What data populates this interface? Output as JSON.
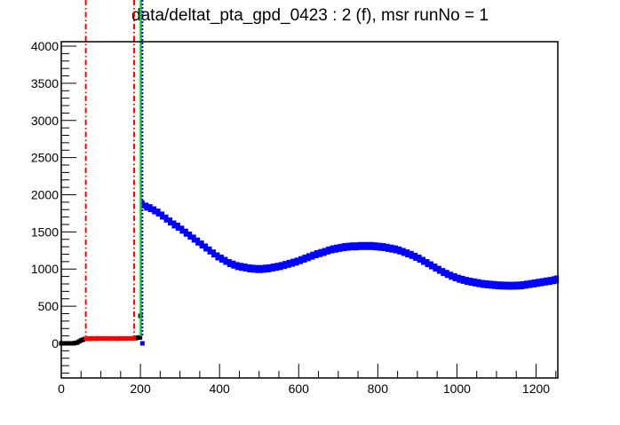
{
  "chart_data": {
    "type": "scatter",
    "title": "data/deltat_pta_gpd_0423 : 2 (f), msr runNo = 1",
    "xlabel": "",
    "ylabel": "",
    "xlim": [
      0,
      1255
    ],
    "ylim": [
      -466,
      4060
    ],
    "grid": false,
    "x_ticks": [
      0,
      200,
      400,
      600,
      800,
      1000,
      1200
    ],
    "y_ticks": [
      0,
      500,
      1000,
      1500,
      2000,
      2500,
      3000,
      3500,
      4000
    ],
    "x_tick_labels": [
      "0",
      "200",
      "400",
      "600",
      "800",
      "1000",
      "1200"
    ],
    "y_tick_labels": [
      "0",
      "500",
      "1000",
      "1500",
      "2000",
      "2500",
      "3000",
      "3500",
      "4000"
    ],
    "x_minor_step": 50,
    "y_minor_step": 100,
    "series": [
      {
        "color": "#000000",
        "points": [
          [
            0,
            0
          ],
          [
            5,
            0
          ],
          [
            10,
            0
          ],
          [
            15,
            0
          ],
          [
            20,
            0
          ],
          [
            25,
            0
          ],
          [
            30,
            0
          ],
          [
            35,
            5
          ],
          [
            40,
            10
          ],
          [
            45,
            25
          ],
          [
            50,
            40
          ],
          [
            55,
            50
          ],
          [
            60,
            60
          ],
          [
            186,
            70
          ],
          [
            190,
            72
          ],
          [
            195,
            78
          ],
          [
            199,
            80
          ],
          [
            200,
            370
          ]
        ]
      },
      {
        "color": "#ff0000",
        "points": [
          [
            63,
            62
          ],
          [
            68,
            65
          ],
          [
            73,
            60
          ],
          [
            78,
            66
          ],
          [
            83,
            64
          ],
          [
            88,
            62
          ],
          [
            93,
            67
          ],
          [
            98,
            63
          ],
          [
            103,
            65
          ],
          [
            108,
            64
          ],
          [
            113,
            66
          ],
          [
            118,
            62
          ],
          [
            123,
            65
          ],
          [
            128,
            63
          ],
          [
            133,
            66
          ],
          [
            138,
            64
          ],
          [
            143,
            62
          ],
          [
            148,
            67
          ],
          [
            153,
            64
          ],
          [
            158,
            65
          ],
          [
            163,
            63
          ],
          [
            168,
            66
          ],
          [
            173,
            64
          ],
          [
            178,
            65
          ],
          [
            183,
            66
          ]
        ]
      },
      {
        "color": "#0000ff",
        "points": [
          [
            205,
            0
          ],
          [
            205,
            1870
          ],
          [
            215,
            1840
          ],
          [
            225,
            1820
          ],
          [
            235,
            1790
          ],
          [
            245,
            1760
          ],
          [
            255,
            1720
          ],
          [
            265,
            1680
          ],
          [
            275,
            1640
          ],
          [
            285,
            1600
          ],
          [
            295,
            1570
          ],
          [
            305,
            1530
          ],
          [
            315,
            1490
          ],
          [
            325,
            1450
          ],
          [
            335,
            1410
          ],
          [
            345,
            1370
          ],
          [
            355,
            1330
          ],
          [
            365,
            1290
          ],
          [
            375,
            1250
          ],
          [
            385,
            1210
          ],
          [
            395,
            1170
          ],
          [
            405,
            1140
          ],
          [
            415,
            1110
          ],
          [
            425,
            1080
          ],
          [
            435,
            1060
          ],
          [
            445,
            1040
          ],
          [
            455,
            1030
          ],
          [
            465,
            1020
          ],
          [
            475,
            1010
          ],
          [
            485,
            1005
          ],
          [
            495,
            1000
          ],
          [
            505,
            1000
          ],
          [
            515,
            1005
          ],
          [
            525,
            1010
          ],
          [
            535,
            1020
          ],
          [
            545,
            1030
          ],
          [
            555,
            1040
          ],
          [
            565,
            1055
          ],
          [
            575,
            1070
          ],
          [
            585,
            1085
          ],
          [
            595,
            1100
          ],
          [
            605,
            1120
          ],
          [
            615,
            1140
          ],
          [
            625,
            1160
          ],
          [
            635,
            1180
          ],
          [
            645,
            1200
          ],
          [
            655,
            1215
          ],
          [
            665,
            1230
          ],
          [
            675,
            1250
          ],
          [
            685,
            1265
          ],
          [
            695,
            1275
          ],
          [
            705,
            1285
          ],
          [
            715,
            1295
          ],
          [
            725,
            1300
          ],
          [
            735,
            1305
          ],
          [
            745,
            1305
          ],
          [
            755,
            1310
          ],
          [
            765,
            1310
          ],
          [
            775,
            1310
          ],
          [
            785,
            1310
          ],
          [
            795,
            1305
          ],
          [
            805,
            1300
          ],
          [
            815,
            1295
          ],
          [
            825,
            1285
          ],
          [
            835,
            1275
          ],
          [
            845,
            1265
          ],
          [
            855,
            1250
          ],
          [
            865,
            1230
          ],
          [
            875,
            1210
          ],
          [
            885,
            1190
          ],
          [
            895,
            1165
          ],
          [
            905,
            1140
          ],
          [
            915,
            1110
          ],
          [
            925,
            1080
          ],
          [
            935,
            1050
          ],
          [
            945,
            1020
          ],
          [
            955,
            990
          ],
          [
            965,
            960
          ],
          [
            975,
            935
          ],
          [
            985,
            910
          ],
          [
            995,
            890
          ],
          [
            1005,
            870
          ],
          [
            1015,
            855
          ],
          [
            1025,
            840
          ],
          [
            1035,
            830
          ],
          [
            1045,
            820
          ],
          [
            1055,
            810
          ],
          [
            1065,
            800
          ],
          [
            1075,
            795
          ],
          [
            1085,
            790
          ],
          [
            1095,
            785
          ],
          [
            1105,
            780
          ],
          [
            1115,
            778
          ],
          [
            1125,
            776
          ],
          [
            1135,
            775
          ],
          [
            1145,
            776
          ],
          [
            1155,
            778
          ],
          [
            1165,
            782
          ],
          [
            1175,
            790
          ],
          [
            1185,
            798
          ],
          [
            1195,
            806
          ],
          [
            1205,
            815
          ],
          [
            1215,
            823
          ],
          [
            1225,
            832
          ],
          [
            1235,
            840
          ],
          [
            1245,
            850
          ],
          [
            1252,
            860
          ]
        ]
      }
    ],
    "vertical_lines": [
      {
        "x": 62,
        "color": "#ff0000",
        "style": "dash-dot"
      },
      {
        "x": 184,
        "color": "#ff0000",
        "style": "dash-dot"
      },
      {
        "x": 201,
        "color": "#00dd00",
        "style": "solid"
      },
      {
        "x": 205,
        "color": "#0000ff",
        "style": "dotted"
      }
    ]
  }
}
